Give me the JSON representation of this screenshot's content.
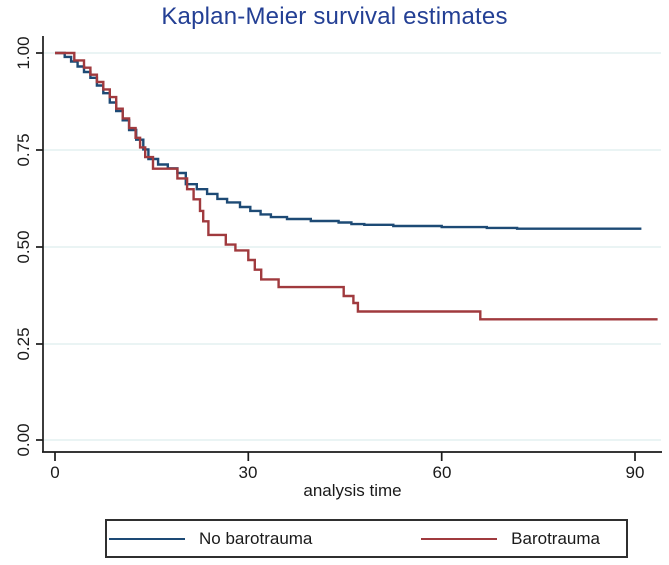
{
  "title": "Kaplan-Meier survival estimates",
  "colors": {
    "title": "#233f94",
    "axis": "#1a1a1a",
    "tick_text": "#1a1a1a",
    "grid": "#e4f0f1",
    "background": "#ffffff",
    "legend_border": "#2f2f2f",
    "series_navy": "#1d4a75",
    "series_maroon": "#a03a3e"
  },
  "chart_data": {
    "type": "line",
    "subtype": "kaplan-meier-step",
    "title": "Kaplan-Meier survival estimates",
    "xlabel": "analysis time",
    "ylabel": "",
    "xlim": [
      0,
      94
    ],
    "ylim": [
      0,
      1
    ],
    "x_ticks": [
      0,
      30,
      60,
      90
    ],
    "x_tick_labels": [
      "0",
      "30",
      "60",
      "90"
    ],
    "y_ticks": [
      1.0,
      0.75,
      0.5,
      0.25,
      0.0
    ],
    "y_tick_labels": [
      "1.00",
      "0.75",
      "0.50",
      "0.25",
      "0.00"
    ],
    "grid": true,
    "legend": {
      "position": "bottom",
      "entries": [
        "No barotrauma",
        "Barotrauma"
      ]
    },
    "series": [
      {
        "name": "No barotrauma",
        "color": "#1d4a75",
        "points": [
          [
            0,
            1.0
          ],
          [
            1.5,
            0.99
          ],
          [
            2.5,
            0.978
          ],
          [
            3.5,
            0.965
          ],
          [
            4.5,
            0.951
          ],
          [
            5.5,
            0.936
          ],
          [
            6.5,
            0.916
          ],
          [
            7.5,
            0.896
          ],
          [
            8.5,
            0.872
          ],
          [
            9.5,
            0.85
          ],
          [
            10.5,
            0.826
          ],
          [
            11.5,
            0.801
          ],
          [
            12.6,
            0.776
          ],
          [
            13.7,
            0.751
          ],
          [
            14.5,
            0.726
          ],
          [
            16,
            0.712
          ],
          [
            17.5,
            0.702
          ],
          [
            19,
            0.69
          ],
          [
            20.3,
            0.661
          ],
          [
            22,
            0.648
          ],
          [
            23.6,
            0.636
          ],
          [
            25.2,
            0.623
          ],
          [
            26.7,
            0.614
          ],
          [
            28.7,
            0.602
          ],
          [
            30.3,
            0.592
          ],
          [
            31.9,
            0.583
          ],
          [
            33.5,
            0.576
          ],
          [
            36,
            0.571
          ],
          [
            39.7,
            0.566
          ],
          [
            44,
            0.562
          ],
          [
            46,
            0.558
          ],
          [
            48,
            0.556
          ],
          [
            52.5,
            0.553
          ],
          [
            60,
            0.55
          ],
          [
            67,
            0.548
          ],
          [
            71.7,
            0.546
          ],
          [
            91,
            0.546
          ]
        ]
      },
      {
        "name": "Barotrauma",
        "color": "#a03a3e",
        "points": [
          [
            0,
            1.0
          ],
          [
            3,
            0.981
          ],
          [
            4.5,
            0.962
          ],
          [
            5.5,
            0.944
          ],
          [
            6.5,
            0.925
          ],
          [
            7.5,
            0.906
          ],
          [
            8.5,
            0.886
          ],
          [
            9.5,
            0.856
          ],
          [
            10.5,
            0.831
          ],
          [
            11.5,
            0.806
          ],
          [
            12.5,
            0.781
          ],
          [
            13.2,
            0.756
          ],
          [
            14,
            0.731
          ],
          [
            15.2,
            0.701
          ],
          [
            19,
            0.676
          ],
          [
            20.5,
            0.648
          ],
          [
            21.5,
            0.622
          ],
          [
            22.5,
            0.592
          ],
          [
            23,
            0.565
          ],
          [
            23.8,
            0.53
          ],
          [
            26.5,
            0.505
          ],
          [
            28,
            0.49
          ],
          [
            30,
            0.465
          ],
          [
            31,
            0.44
          ],
          [
            32,
            0.415
          ],
          [
            34.7,
            0.395
          ],
          [
            44.8,
            0.372
          ],
          [
            46.3,
            0.354
          ],
          [
            47,
            0.332
          ],
          [
            66,
            0.312
          ],
          [
            93.5,
            0.312
          ]
        ]
      }
    ]
  }
}
